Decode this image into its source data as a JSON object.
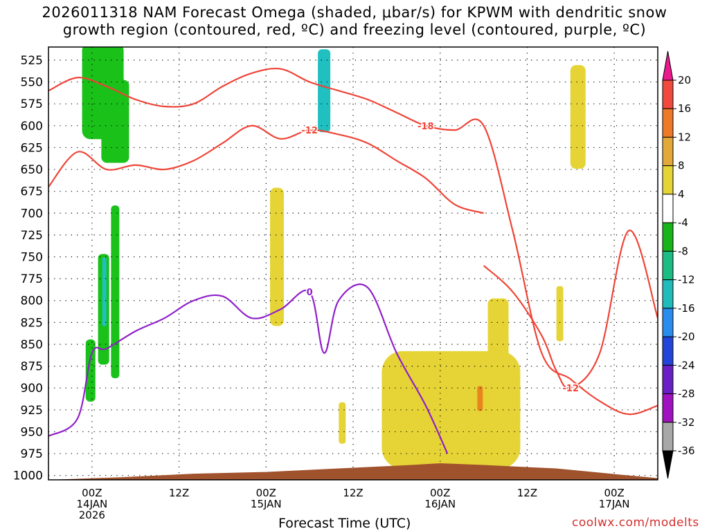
{
  "title_line1": "2026011318 NAM Forecast Omega (shaded, μbar/s) for KPWM with dendritic snow",
  "title_line2": "growth region (contoured, red, ºC) and freezing level (contoured, purple, ºC)",
  "xlabel": "Forecast Time (UTC)",
  "footer": "coolwx.com/modelts",
  "chart_data": {
    "type": "heatmap",
    "title": "2026011318 NAM Forecast Omega (shaded, μbar/s) for KPWM with dendritic snow growth region (contoured, red, ºC) and freezing level (contoured, purple, ºC)",
    "xlabel": "Forecast Time (UTC)",
    "ylabel": "",
    "x_unit": "hours from 2026-01-13 18Z",
    "xlim": [
      0,
      84
    ],
    "ylim": [
      1005,
      510
    ],
    "y_ticks": [
      525,
      550,
      575,
      600,
      625,
      650,
      675,
      700,
      725,
      750,
      775,
      800,
      825,
      850,
      875,
      900,
      925,
      950,
      975,
      1000
    ],
    "x_ticks": [
      {
        "x": 6,
        "l1": "00Z",
        "l2": "14JAN",
        "l3": "2026"
      },
      {
        "x": 18,
        "l1": "12Z",
        "l2": "",
        "l3": ""
      },
      {
        "x": 30,
        "l1": "00Z",
        "l2": "15JAN",
        "l3": ""
      },
      {
        "x": 42,
        "l1": "12Z",
        "l2": "",
        "l3": ""
      },
      {
        "x": 54,
        "l1": "00Z",
        "l2": "16JAN",
        "l3": ""
      },
      {
        "x": 66,
        "l1": "12Z",
        "l2": "",
        "l3": ""
      },
      {
        "x": 78,
        "l1": "00Z",
        "l2": "17JAN",
        "l3": ""
      }
    ],
    "grid": "dotted",
    "colorbar": {
      "ticks": [
        "20",
        "16",
        "12",
        "8",
        "4",
        "-4",
        "-8",
        "-12",
        "-16",
        "-20",
        "-24",
        "-28",
        "-32",
        "-36"
      ],
      "colors": [
        "#ec1a8c",
        "#f04a3e",
        "#ec7a28",
        "#e3a83a",
        "#e6d436",
        "#ffffff",
        "#19b419",
        "#1cbd82",
        "#20bcbc",
        "#2a8cec",
        "#2244d8",
        "#6a1fc4",
        "#a012c0",
        "#a8a8a8",
        "#000000"
      ]
    },
    "omega_regions": [
      {
        "name": "green",
        "color": "#19c119",
        "value_range": "-4 to -8",
        "x": [
          8.2,
          9.2,
          5.8,
          5.8,
          9.2,
          7.5,
          7.6
        ],
        "p": [
          510,
          790,
          880,
          530,
          595,
          560,
          810
        ]
      },
      {
        "name": "teal",
        "color": "#20c0c0",
        "value_range": "-12 to -16",
        "x": [
          7.7,
          38.0
        ],
        "p": [
          790,
          560
        ]
      },
      {
        "name": "yellow",
        "color": "#e6d436",
        "value_range": "4 to 8",
        "x": [
          55.5,
          62.0,
          70.5,
          73.0,
          31.5,
          40.5
        ],
        "p": [
          925,
          845,
          815,
          590,
          750,
          940
        ]
      },
      {
        "name": "orange",
        "color": "#e8861e",
        "value_range": "8 to 12",
        "x": [
          59.5
        ],
        "p": [
          912
        ]
      }
    ],
    "red_contours": [
      {
        "label": "-18",
        "x": [
          0,
          4,
          8,
          12,
          16,
          20,
          24,
          28,
          32,
          36,
          40,
          44,
          48,
          52,
          56,
          60,
          64,
          68,
          72,
          76,
          80,
          84
        ],
        "p": [
          560,
          545,
          555,
          570,
          578,
          575,
          555,
          540,
          535,
          550,
          560,
          570,
          585,
          600,
          605,
          600,
          720,
          860,
          890,
          915,
          930,
          920
        ]
      },
      {
        "label": "-12",
        "x": [
          0,
          4,
          8,
          12,
          16,
          20,
          24,
          28,
          32,
          36,
          40,
          44,
          48,
          52,
          56,
          60
        ],
        "p": [
          670,
          630,
          650,
          645,
          650,
          640,
          620,
          600,
          615,
          605,
          610,
          620,
          640,
          660,
          690,
          700
        ]
      },
      {
        "label": "-12",
        "x": [
          60,
          64,
          68,
          70,
          72,
          76,
          80,
          84
        ],
        "p": [
          760,
          790,
          840,
          880,
          900,
          860,
          720,
          820
        ]
      }
    ],
    "purple_contours": [
      {
        "label": "0",
        "x": [
          0,
          4,
          6,
          8,
          12,
          16,
          20,
          24,
          28,
          32,
          36,
          38,
          40,
          44,
          48,
          52,
          55
        ],
        "p": [
          955,
          935,
          860,
          855,
          835,
          820,
          800,
          795,
          820,
          810,
          790,
          860,
          800,
          785,
          860,
          920,
          975
        ]
      }
    ],
    "terrain": {
      "color": "#a0522d",
      "x": [
        0,
        10,
        20,
        30,
        40,
        50,
        54,
        60,
        70,
        80,
        84
      ],
      "p": [
        1005,
        1002,
        998,
        996,
        992,
        988,
        986,
        988,
        992,
        1000,
        1003
      ]
    }
  }
}
